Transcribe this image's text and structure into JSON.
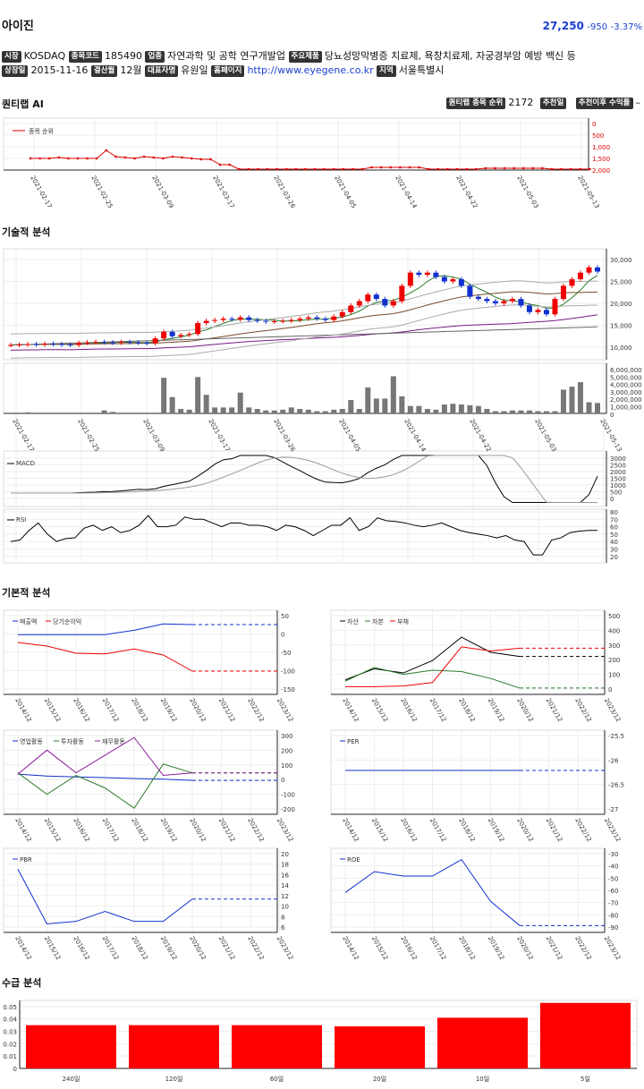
{
  "header": {
    "name": "아이진",
    "price": "27,250",
    "change": "-950",
    "change_pct": "-3.37%"
  },
  "info_row1": [
    {
      "label": "시장",
      "value": "KOSDAQ"
    },
    {
      "label": "종목코드",
      "value": "185490"
    },
    {
      "label": "업종",
      "value": "자연과학 및 공학 연구개발업"
    },
    {
      "label": "주요제품",
      "value": "당뇨성망막병증 치료제, 욕창치료제, 자궁경부암 예방 백신 등"
    }
  ],
  "info_row2": [
    {
      "label": "상장일",
      "value": "2015-11-16"
    },
    {
      "label": "결산월",
      "value": "12월"
    },
    {
      "label": "대표자명",
      "value": "유원일"
    },
    {
      "label": "홈페이지",
      "value": "http://www.eyegene.co.kr"
    },
    {
      "label": "지역",
      "value": "서울특별시"
    }
  ],
  "quant": {
    "title": "퀀티랩 AI",
    "rank_label": "퀀티랩 종목 순위",
    "rank_value": "2172",
    "rec_date_label": "추천일",
    "rec_return_label": "추천이후 수익률",
    "rec_return_value": "–",
    "legend": "종목 순위",
    "yticks": [
      "0",
      "500",
      "1,000",
      "1,500",
      "2,000"
    ],
    "xticks": [
      "2021-02-17",
      "2021-02-25",
      "2021-03-09",
      "2021-03-17",
      "2021-03-26",
      "2021-04-05",
      "2021-04-14",
      "2021-04-22",
      "2021-05-03",
      "2021-05-13"
    ]
  },
  "tech": {
    "title": "기술적 분석",
    "price_ticks": [
      "30,000",
      "25,000",
      "20,000",
      "15,000",
      "10,000"
    ],
    "vol_ticks": [
      "6,000,000",
      "5,000,000",
      "4,000,000",
      "3,000,000",
      "2,000,000",
      "1,000,000",
      "0"
    ],
    "xticks": [
      "2021-02-17",
      "2021-02-25",
      "2021-03-09",
      "2021-03-17",
      "2021-03-26",
      "2021-04-05",
      "2021-04-14",
      "2021-04-22",
      "2021-05-03",
      "2021-05-13"
    ],
    "macd_label": "MACD",
    "macd_ticks": [
      "3000",
      "2500",
      "2000",
      "1500",
      "1000",
      "500",
      "0"
    ],
    "rsi_label": "RSI",
    "rsi_ticks": [
      "80",
      "70",
      "60",
      "50",
      "40",
      "30",
      "20"
    ]
  },
  "fund": {
    "title": "기본적 분석",
    "years": [
      "2014/12",
      "2015/12",
      "2016/12",
      "2017/12",
      "2018/12",
      "2019/12",
      "2020/12",
      "2021/12",
      "2022/12",
      "2023/12"
    ],
    "c1": {
      "legend": [
        "매출액",
        "당기순이익"
      ],
      "ticks": [
        "50",
        "0",
        "-50",
        "-100",
        "-150"
      ]
    },
    "c2": {
      "legend": [
        "자산",
        "자본",
        "부채"
      ],
      "ticks": [
        "500",
        "400",
        "300",
        "200",
        "100",
        "0"
      ]
    },
    "c3": {
      "legend": [
        "영업활동",
        "투자활동",
        "재무활동"
      ],
      "ticks": [
        "300",
        "200",
        "100",
        "0",
        "-100",
        "-200"
      ]
    },
    "c4": {
      "legend": [
        "PER"
      ],
      "ticks": [
        "-25.5",
        "-26",
        "-26.5",
        "-27"
      ]
    },
    "c5": {
      "legend": [
        "PBR"
      ],
      "ticks": [
        "20",
        "18",
        "16",
        "14",
        "12",
        "10",
        "8",
        "6"
      ]
    },
    "c6": {
      "legend": [
        "ROE"
      ],
      "ticks": [
        "-30",
        "-40",
        "-50",
        "-60",
        "-70",
        "-80",
        "-90"
      ]
    }
  },
  "supply": {
    "title": "수급 분석"
  },
  "chart_data": {
    "type": "bar",
    "title": "수급 분석",
    "categories": [
      "240일",
      "120일",
      "60일",
      "20일",
      "10일",
      "5일"
    ],
    "values": [
      0.035,
      0.035,
      0.035,
      0.034,
      0.041,
      0.053
    ],
    "ylim": [
      0,
      0.055
    ],
    "yticks": [
      "0.05",
      "0.04",
      "0.03",
      "0.02",
      "0.01",
      "0"
    ],
    "color": "#ff0000"
  }
}
